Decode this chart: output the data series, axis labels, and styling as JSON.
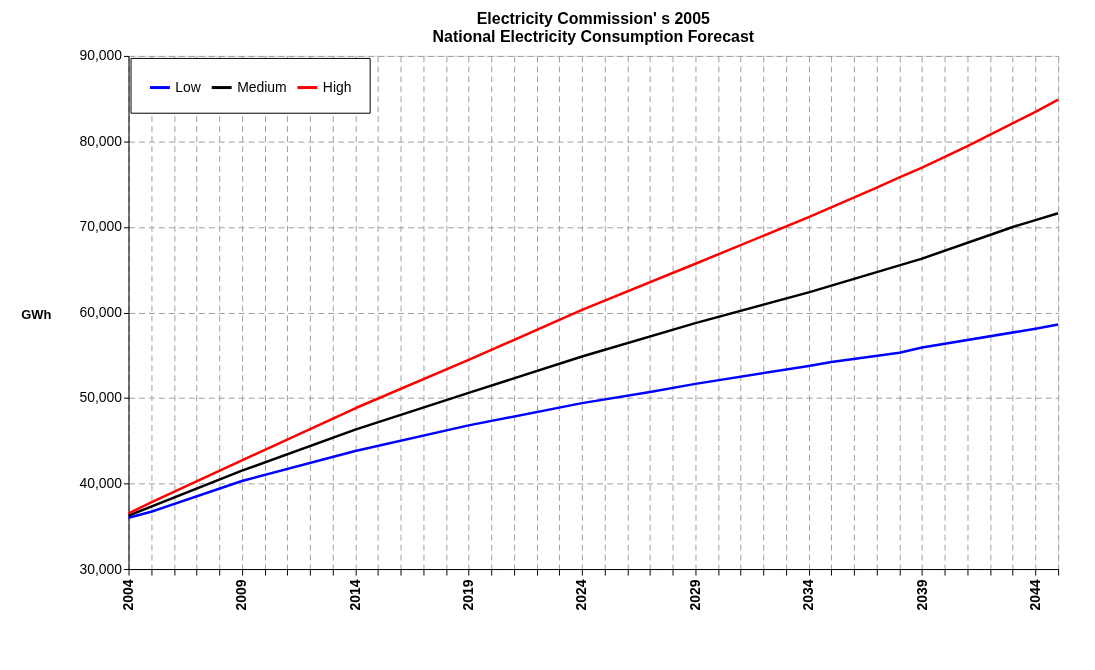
{
  "chart_data": {
    "type": "line",
    "title": [
      "Electricity Commission' s 2005",
      "National Electricity Consumption Forecast"
    ],
    "ylabel": "GWh",
    "series": [
      {
        "name": "Low",
        "color": "#0000ff",
        "x": [
          2004,
          2005,
          2009,
          2014,
          2019,
          2024,
          2027,
          2029,
          2034,
          2035,
          2038,
          2039,
          2044,
          2045
        ],
        "values": [
          36000,
          36700,
          40300,
          43800,
          46800,
          49400,
          50700,
          51650,
          53750,
          54200,
          55300,
          55900,
          58100,
          58600
        ]
      },
      {
        "name": "Medium",
        "color": "#000000",
        "x": [
          2004,
          2009,
          2014,
          2019,
          2024,
          2029,
          2034,
          2039,
          2043,
          2044,
          2045
        ],
        "values": [
          36250,
          41500,
          46300,
          50600,
          54850,
          58750,
          62350,
          66300,
          70000,
          70800,
          71600
        ]
      },
      {
        "name": "High",
        "color": "#ff0000",
        "x": [
          2004,
          2005,
          2009,
          2014,
          2019,
          2024,
          2029,
          2034,
          2037,
          2038,
          2039,
          2041,
          2044,
          2045
        ],
        "values": [
          36500,
          37800,
          42700,
          48800,
          54450,
          60300,
          65700,
          71150,
          74600,
          75800,
          76950,
          79450,
          83450,
          84900
        ]
      }
    ],
    "xlim": [
      2004,
      2045
    ],
    "xticks": [
      2004,
      {
        "value": 2005,
        "label": null
      },
      {
        "value": 2006,
        "label": null
      },
      {
        "value": 2007,
        "label": null
      },
      {
        "value": 2008,
        "label": null
      },
      2009,
      {
        "value": 2010,
        "label": null
      },
      {
        "value": 2011,
        "label": null
      },
      {
        "value": 2012,
        "label": null
      },
      {
        "value": 2013,
        "label": null
      },
      2014,
      {
        "value": 2015,
        "label": null
      },
      {
        "value": 2016,
        "label": null
      },
      {
        "value": 2017,
        "label": null
      },
      {
        "value": 2018,
        "label": null
      },
      2019,
      {
        "value": 2020,
        "label": null
      },
      {
        "value": 2021,
        "label": null
      },
      {
        "value": 2022,
        "label": null
      },
      {
        "value": 2023,
        "label": null
      },
      2024,
      {
        "value": 2025,
        "label": null
      },
      {
        "value": 2026,
        "label": null
      },
      {
        "value": 2027,
        "label": null
      },
      {
        "value": 2028,
        "label": null
      },
      2029,
      {
        "value": 2030,
        "label": null
      },
      {
        "value": 2031,
        "label": null
      },
      {
        "value": 2032,
        "label": null
      },
      {
        "value": 2033,
        "label": null
      },
      2034,
      {
        "value": 2035,
        "label": null
      },
      {
        "value": 2036,
        "label": null
      },
      {
        "value": 2037,
        "label": null
      },
      {
        "value": 2038,
        "label": null
      },
      2039,
      {
        "value": 2040,
        "label": null
      },
      {
        "value": 2041,
        "label": null
      },
      {
        "value": 2042,
        "label": null
      },
      {
        "value": 2043,
        "label": null
      },
      2044,
      {
        "value": 2045,
        "label": null
      }
    ],
    "ylim": [
      30000,
      90000
    ],
    "yticks": [
      {
        "value": 30000,
        "label": "30,000"
      },
      {
        "value": 40000,
        "label": "40,000"
      },
      {
        "value": 50000,
        "label": "50,000"
      },
      {
        "value": 60000,
        "label": "60,000"
      },
      {
        "value": 70000,
        "label": "70,000"
      },
      {
        "value": 80000,
        "label": "80,000"
      },
      {
        "value": 90000,
        "label": "90,000"
      }
    ],
    "grid": true,
    "legend": "top left",
    "line_style": "solid",
    "marker": "none"
  }
}
